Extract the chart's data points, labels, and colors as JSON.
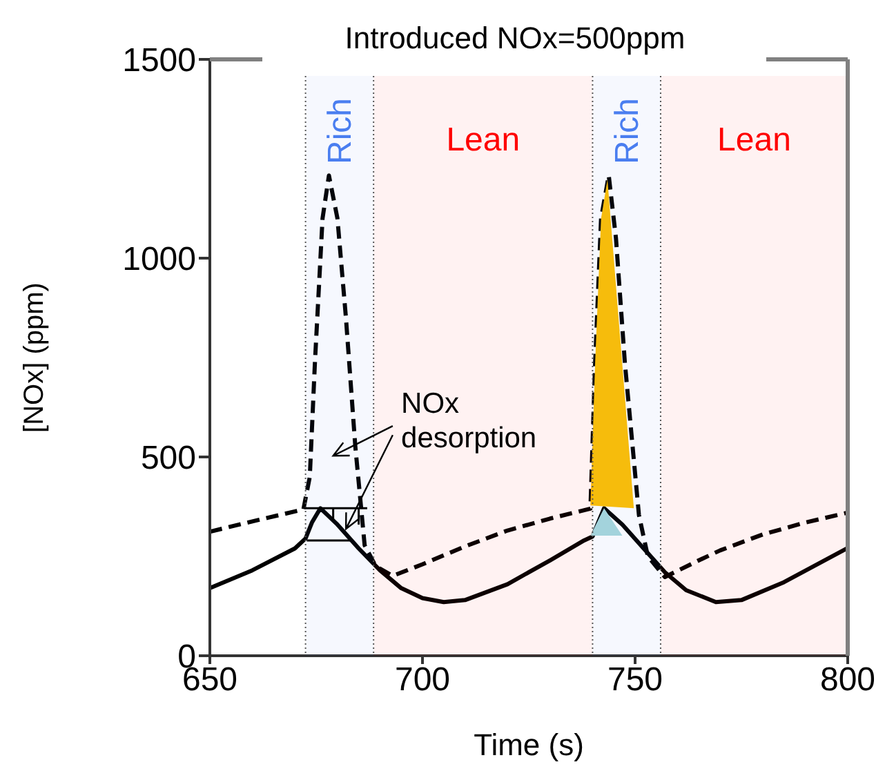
{
  "chart_data": {
    "type": "line",
    "title": "Introduced NOx=500ppm",
    "xlabel": "Time (s)",
    "ylabel": "[NOx] (ppm)",
    "xlim": [
      650,
      800
    ],
    "xticks": [
      650,
      700,
      750,
      800
    ],
    "ylim": [
      0,
      1500
    ],
    "yticks": [
      0,
      500,
      1000,
      1500
    ],
    "series": [
      {
        "type": "area",
        "color": "#ffc000",
        "x": [
          739.5,
          740.6,
          742,
          743.5,
          749.7
        ],
        "values": [
          378,
          736,
          1100,
          1198,
          371
        ]
      },
      {
        "type": "area",
        "color": "#a8d8dc",
        "x": [
          739.5,
          742.7,
          747
        ],
        "values": [
          302,
          371,
          302
        ]
      },
      {
        "color": "#000000",
        "line_style": "dashed",
        "x": [
          650,
          660,
          672,
          673.5,
          674.7,
          676.5,
          678,
          680,
          682,
          684.2,
          686.4,
          689,
          693,
          700,
          710,
          720,
          730,
          739.5,
          740.6,
          742,
          743.8,
          745.5,
          747.6,
          750.9,
          753,
          757,
          765,
          770,
          780,
          790,
          800
        ],
        "values": [
          312,
          338,
          368,
          450,
          736,
          1100,
          1208,
          1100,
          850,
          527,
          278,
          225,
          201,
          230,
          275,
          315,
          345,
          370,
          736,
          1100,
          1208,
          1050,
          736,
          354,
          250,
          198,
          240,
          265,
          305,
          335,
          360
        ]
      },
      {
        "color": "#000000",
        "line_style": "solid",
        "x": [
          650,
          660,
          670,
          672.5,
          674,
          676,
          680,
          685,
          690,
          695,
          700,
          705,
          710,
          720,
          730,
          738,
          740,
          741.5,
          742.7,
          747,
          752,
          757,
          762,
          769,
          775,
          785,
          800
        ],
        "values": [
          170,
          215,
          270,
          295,
          335,
          371,
          330,
          270,
          215,
          170,
          145,
          135,
          140,
          180,
          240,
          290,
          300,
          340,
          371,
          330,
          270,
          210,
          165,
          135,
          140,
          185,
          271
        ]
      }
    ],
    "bands": [
      {
        "axis": "x",
        "from": 672.5,
        "to": 688.5,
        "label": "Rich",
        "color": "#4a7ef0"
      },
      {
        "axis": "x",
        "from": 688.5,
        "to": 740,
        "label": "Lean",
        "color": "#ff0000"
      },
      {
        "axis": "x",
        "from": 740,
        "to": 756,
        "label": "Rich",
        "color": "#4a7ef0"
      },
      {
        "axis": "x",
        "from": 756,
        "to": 800,
        "label": "Lean",
        "color": "#ff0000"
      }
    ],
    "annotations": [
      {
        "text": "NOx desorption",
        "x": 682,
        "y": 320
      }
    ]
  }
}
